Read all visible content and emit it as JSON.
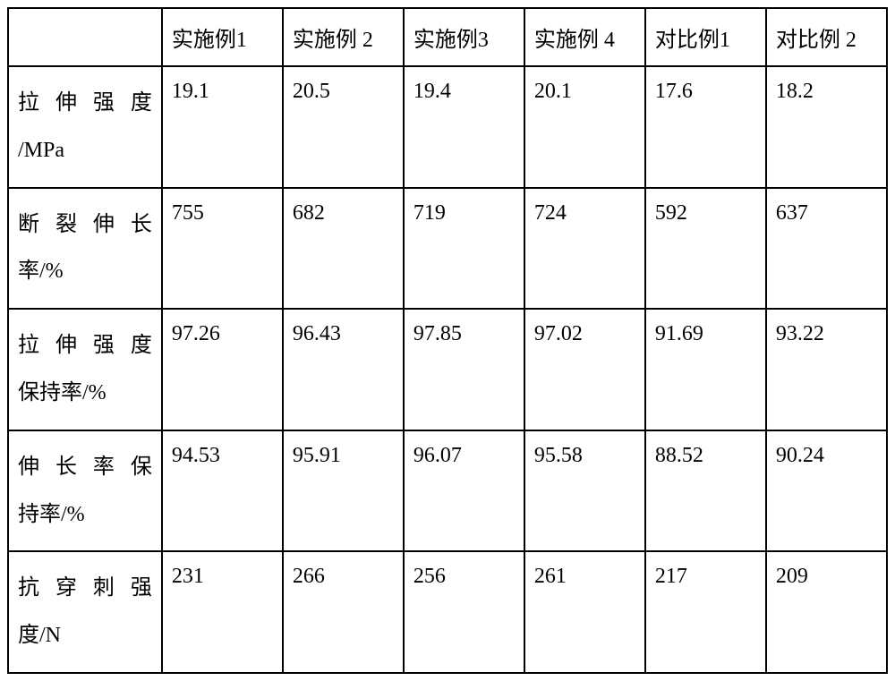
{
  "table": {
    "columns": [
      "",
      "实施例1",
      "实施例 2",
      "实施例3",
      "实施例 4",
      "对比例1",
      "对比例 2"
    ],
    "rows": [
      {
        "header_line1": "拉伸强度",
        "header_line2": "/MPa",
        "values": [
          "19.1",
          "20.5",
          "19.4",
          "20.1",
          "17.6",
          "18.2"
        ]
      },
      {
        "header_line1": "断裂伸长",
        "header_line2": "率/%",
        "values": [
          "755",
          "682",
          "719",
          "724",
          "592",
          "637"
        ]
      },
      {
        "header_line1": "拉伸强度",
        "header_line2": "保持率/%",
        "values": [
          "97.26",
          "96.43",
          "97.85",
          "97.02",
          "91.69",
          "93.22"
        ]
      },
      {
        "header_line1": "伸长率保",
        "header_line2": "持率/%",
        "values": [
          "94.53",
          "95.91",
          "96.07",
          "95.58",
          "88.52",
          "90.24"
        ]
      },
      {
        "header_line1": "抗穿刺强",
        "header_line2": "度/N",
        "values": [
          "231",
          "266",
          "256",
          "261",
          "217",
          "209"
        ]
      }
    ],
    "border_color": "#000000",
    "background_color": "#ffffff",
    "text_color": "#000000",
    "font_size": 24,
    "font_family": "SimSun"
  }
}
